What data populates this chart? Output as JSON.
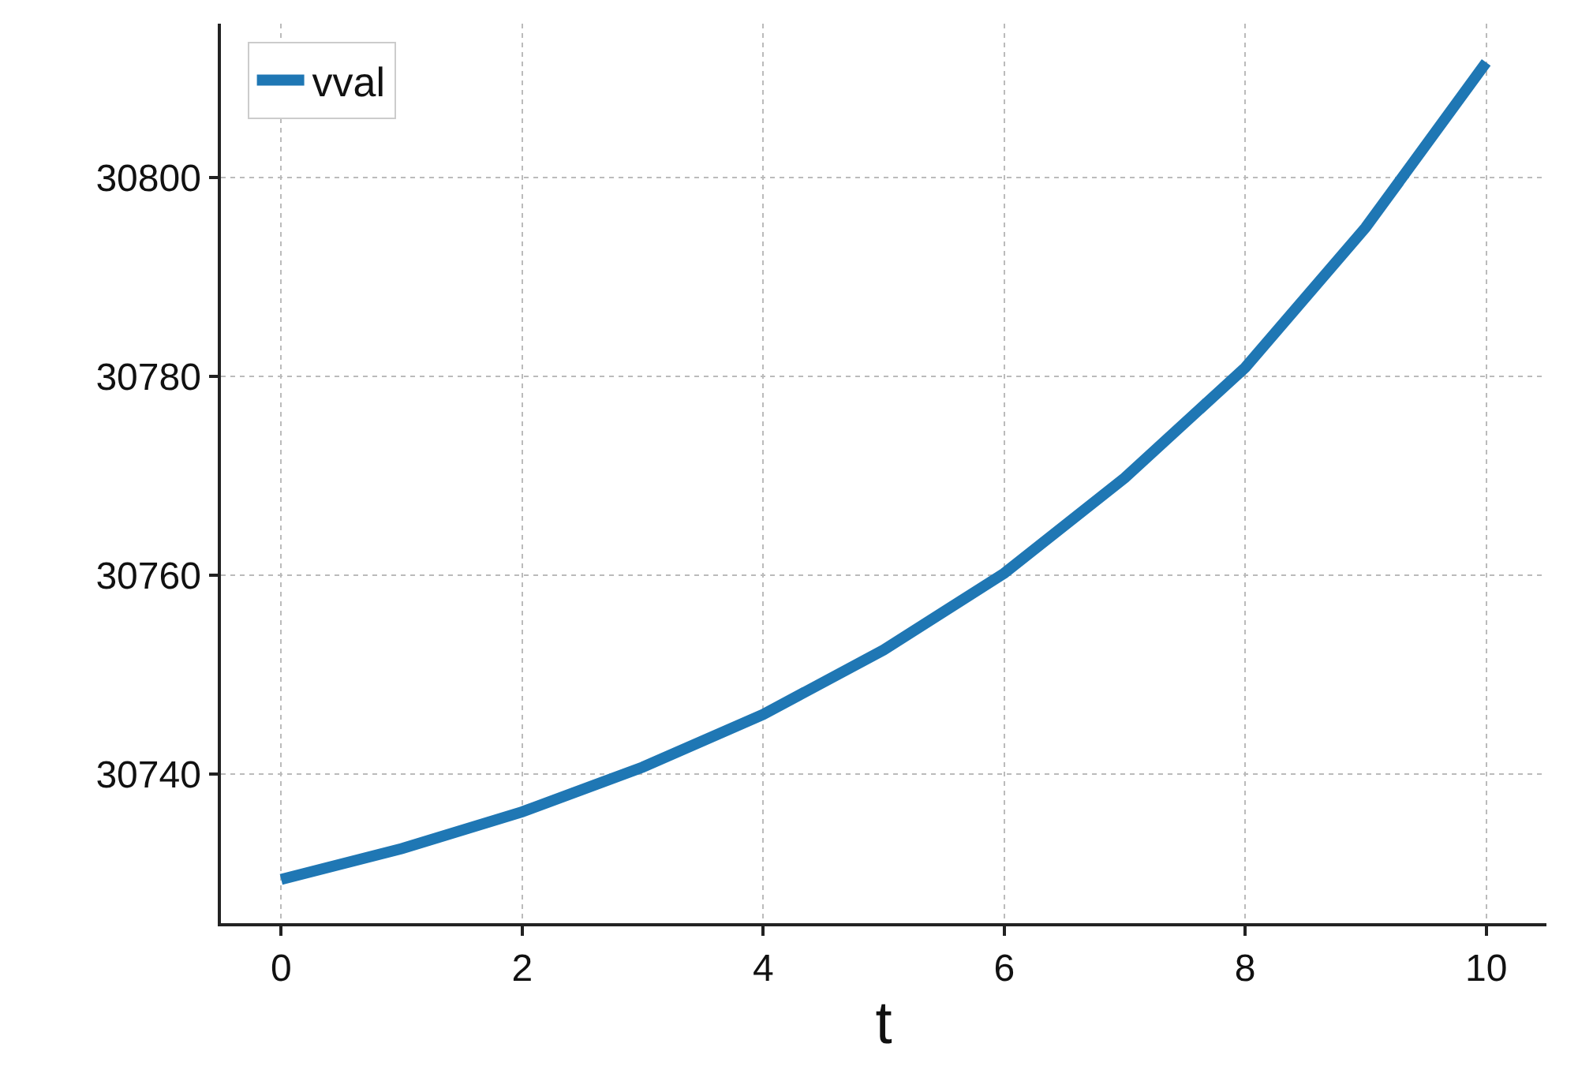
{
  "chart_data": {
    "type": "line",
    "xlabel": "t",
    "x": [
      0,
      1,
      2,
      3,
      4,
      5,
      6,
      7,
      8,
      9,
      10
    ],
    "series": [
      {
        "name": "vval",
        "color": "#1f77b4",
        "values": [
          30729.4,
          30732.5,
          30736.2,
          30740.7,
          30746.0,
          30752.5,
          30760.2,
          30769.8,
          30780.9,
          30795.0,
          30811.6
        ]
      }
    ],
    "xlim": [
      -0.5,
      10.5
    ],
    "xticks": [
      0,
      2,
      4,
      6,
      8,
      10
    ],
    "ylim": [
      30725,
      30815.5
    ],
    "yticks": [
      30740,
      30760,
      30780,
      30800
    ],
    "grid": true,
    "legend": "top left",
    "line_style": "solid",
    "marker": "none"
  }
}
